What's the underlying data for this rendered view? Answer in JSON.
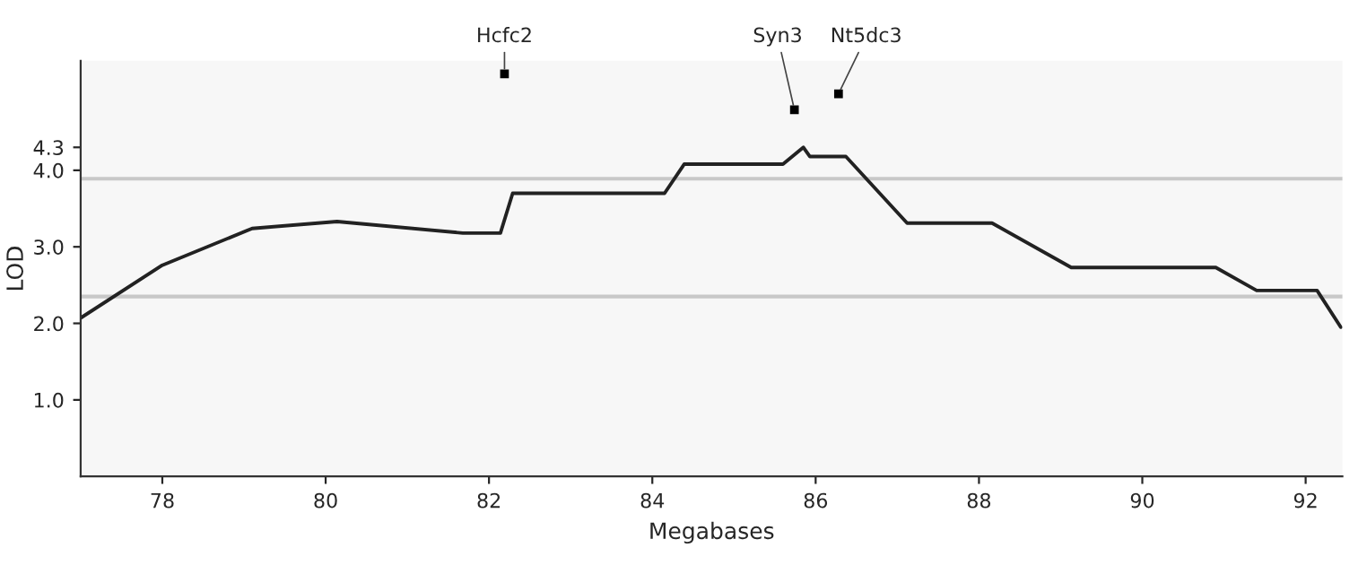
{
  "chart_data": {
    "type": "line",
    "xlabel": "Megabases",
    "ylabel": "LOD",
    "x": [
      77.0,
      78.0,
      79.1,
      80.14,
      81.68,
      82.14,
      82.29,
      84.15,
      84.39,
      85.6,
      85.85,
      85.93,
      86.37,
      87.12,
      88.16,
      89.13,
      90.9,
      91.4,
      92.14,
      92.43
    ],
    "series": [
      {
        "color": "#222222",
        "values": [
          2.07,
          2.76,
          3.24,
          3.33,
          3.18,
          3.18,
          3.7,
          3.7,
          4.08,
          4.08,
          4.3,
          4.18,
          4.18,
          3.31,
          3.31,
          2.73,
          2.73,
          2.43,
          2.43,
          1.95
        ]
      }
    ],
    "xlim": [
      77.0,
      92.45
    ],
    "ylim": [
      0,
      5.43
    ],
    "xticks": [
      78,
      80,
      82,
      84,
      86,
      88,
      90,
      92
    ],
    "yticks": [
      {
        "value": 1.0,
        "label": "1.0"
      },
      {
        "value": 2.0,
        "label": "2.0"
      },
      {
        "value": 3.0,
        "label": "3.0"
      },
      {
        "value": 4.0,
        "label": "4.0"
      },
      {
        "value": 4.3,
        "label": "4.3"
      }
    ],
    "ref_lines": [
      {
        "axis": "y",
        "value": 3.89,
        "color": "#c8c8c8"
      },
      {
        "axis": "y",
        "value": 2.35,
        "color": "#c8c8c8"
      }
    ],
    "annotations": [
      {
        "text": "Hcfc2",
        "x": 82.19,
        "y": 5.26
      },
      {
        "text": "Syn3",
        "x": 85.74,
        "y": 4.79
      },
      {
        "text": "Nt5dc3",
        "x": 86.28,
        "y": 5.0
      }
    ],
    "grid": false,
    "marker": "none",
    "line_style": "solid"
  }
}
